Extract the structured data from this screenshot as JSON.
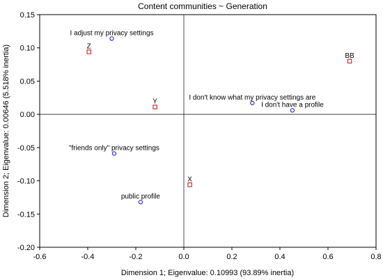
{
  "chart_data": {
    "type": "scatter",
    "title": "Content communities ~ Generation",
    "xlabel": "Dimension 1; Eigenvalue: 0.10993 (93.89% inertia)",
    "ylabel": "Dimension 2; Eigenvalue: 0.00646 (5.518% inertia)",
    "xlim": [
      -0.6,
      0.8
    ],
    "ylim": [
      -0.2,
      0.15
    ],
    "xticks": [
      "-0.6",
      "-0.4",
      "-0.2",
      "0.0",
      "0.2",
      "0.4",
      "0.6",
      "0.8"
    ],
    "yticks": [
      "0.15",
      "0.10",
      "0.05",
      "0.00",
      "-0.05",
      "-0.10",
      "-0.15",
      "-0.20"
    ],
    "xtick_values": [
      -0.6,
      -0.4,
      -0.2,
      0.0,
      0.2,
      0.4,
      0.6,
      0.8
    ],
    "ytick_values": [
      0.15,
      0.1,
      0.05,
      0.0,
      -0.05,
      -0.1,
      -0.15,
      -0.2
    ],
    "grid": false,
    "reference_lines": {
      "x": 0,
      "y": 0
    },
    "series": [
      {
        "marker": "circle",
        "color": "#1f1fd0",
        "points": [
          {
            "label": "I adjust my privacy settings",
            "x": -0.3,
            "y": 0.114
          },
          {
            "label": "I don't know  what my privacy settings are",
            "x": 0.285,
            "y": 0.017
          },
          {
            "label": "I don't have a profile",
            "x": 0.452,
            "y": 0.006
          },
          {
            "label": "\"friends only\" privacy settings",
            "x": -0.29,
            "y": -0.059
          },
          {
            "label": "public profile",
            "x": -0.18,
            "y": -0.132
          }
        ]
      },
      {
        "marker": "square",
        "color": "#d02020",
        "points": [
          {
            "label": "Z",
            "x": -0.395,
            "y": 0.094
          },
          {
            "label": "BB",
            "x": 0.69,
            "y": 0.08
          },
          {
            "label": "Y",
            "x": -0.12,
            "y": 0.011
          },
          {
            "label": "X",
            "x": 0.025,
            "y": -0.106
          }
        ]
      }
    ]
  }
}
